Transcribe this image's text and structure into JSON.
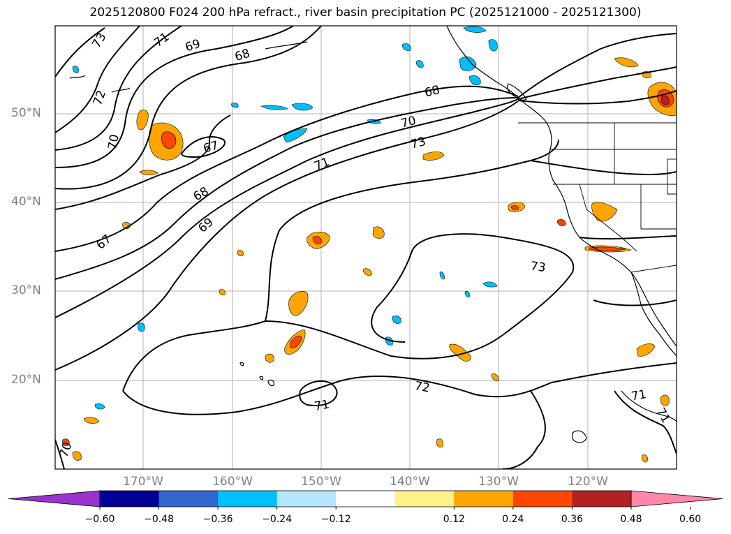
{
  "title": "2025120800 F024 200 hPa refract., river basin precipitation PC (2025121000 - 2025121300)",
  "lat_labels": [
    "50°N",
    "40°N",
    "30°N",
    "20°N"
  ],
  "lon_labels": [
    "170°W",
    "160°W",
    "150°W",
    "140°W",
    "130°W",
    "120°W"
  ],
  "contour_labels": [
    "73",
    "71",
    "69",
    "68",
    "72",
    "70",
    "67",
    "68",
    "69",
    "67",
    "68",
    "70",
    "73",
    "71",
    "73",
    "72",
    "71",
    "71",
    "71",
    "70"
  ],
  "colorbar": {
    "colors": [
      "#9933cc",
      "#000099",
      "#3366cc",
      "#00bfff",
      "#b3e5fc",
      "#ffffff",
      "#fff08c",
      "#ffa500",
      "#ff4500",
      "#b22222",
      "#ff88aa"
    ],
    "under_color": "#9933cc",
    "over_color": "#ff88aa",
    "ticks": [
      "−0.60",
      "−0.48",
      "−0.36",
      "−0.24",
      "−0.12",
      "0.12",
      "0.24",
      "0.36",
      "0.48",
      "0.60"
    ]
  }
}
